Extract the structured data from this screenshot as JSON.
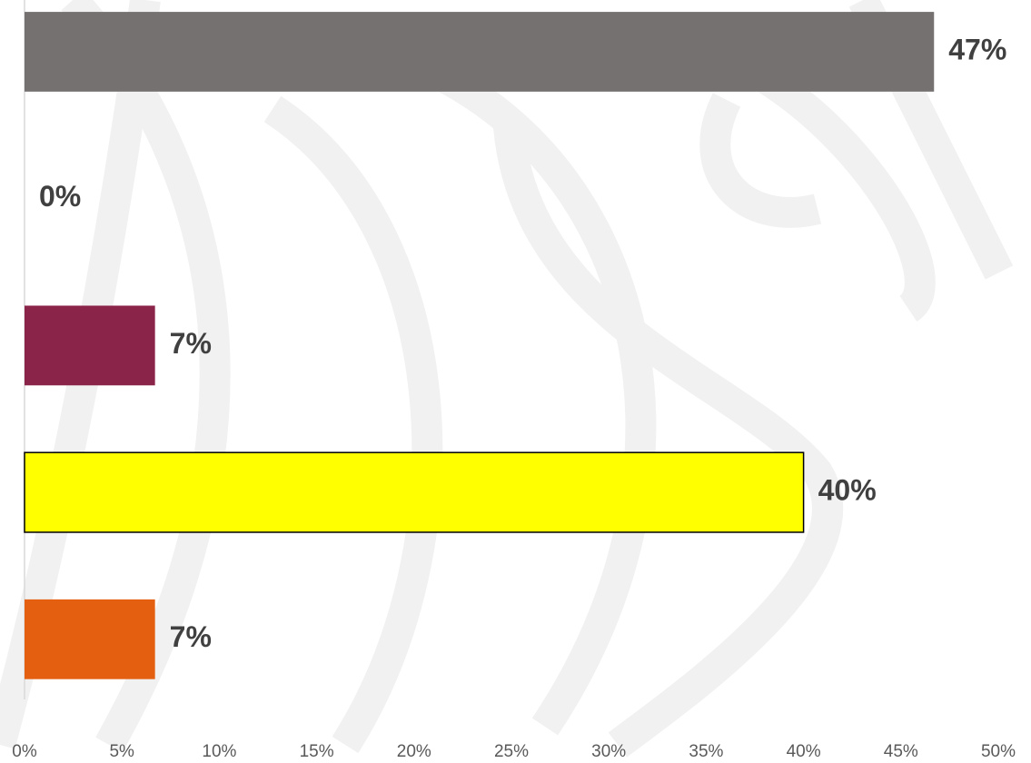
{
  "chart_data": {
    "type": "barh",
    "categories": [
      null,
      null,
      null,
      null,
      null
    ],
    "values": [
      46.7,
      0,
      6.7,
      40,
      6.7
    ],
    "value_labels": [
      "47%",
      "0%",
      "7%",
      "40%",
      "7%"
    ],
    "colors": [
      "#767171",
      "#767171",
      "#8b2449",
      "#ffff00",
      "#e46010"
    ],
    "edgecolors": [
      null,
      null,
      null,
      "#000000",
      null
    ],
    "xlim": [
      0,
      50
    ],
    "xticks": [
      {
        "value": 0,
        "label": "0%"
      },
      {
        "value": 5,
        "label": "5%"
      },
      {
        "value": 10,
        "label": "10%"
      },
      {
        "value": 15,
        "label": "15%"
      },
      {
        "value": 20,
        "label": "20%"
      },
      {
        "value": 25,
        "label": "25%"
      },
      {
        "value": 30,
        "label": "30%"
      },
      {
        "value": 35,
        "label": "35%"
      },
      {
        "value": 40,
        "label": "40%"
      },
      {
        "value": 45,
        "label": "45%"
      },
      {
        "value": 50,
        "label": "50%"
      }
    ],
    "grid": false
  }
}
